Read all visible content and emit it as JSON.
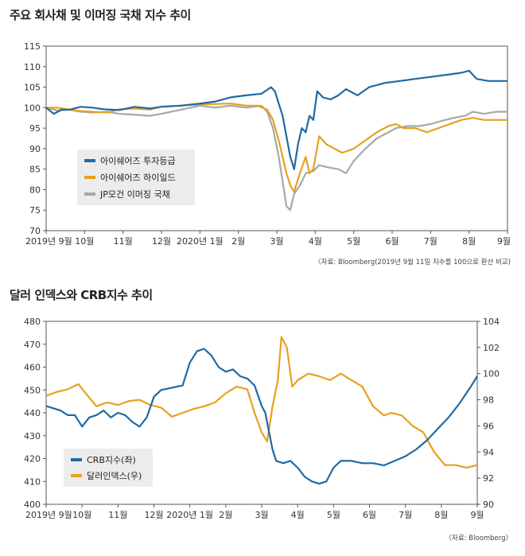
{
  "chart_data": [
    {
      "type": "line",
      "title": "주요 회사채 및 이머징 국채 지수 추이",
      "source": "〈자료: Bloomberg(2019년 9월 11일 지수를 100으로 환산 비교)",
      "ylim": [
        70,
        115
      ],
      "yticks": [
        "70",
        "75",
        "80",
        "85",
        "90",
        "95",
        "100",
        "105",
        "110",
        "115"
      ],
      "xlim": [
        0,
        12
      ],
      "xticks": [
        {
          "label": "2019년 9월",
          "x": 0
        },
        {
          "label": "10월",
          "x": 1
        },
        {
          "label": "11월",
          "x": 2
        },
        {
          "label": "12월",
          "x": 3
        },
        {
          "label": "2020년 1월",
          "x": 4
        },
        {
          "label": "2월",
          "x": 5
        },
        {
          "label": "3월",
          "x": 6
        },
        {
          "label": "4월",
          "x": 7
        },
        {
          "label": "5월",
          "x": 8
        },
        {
          "label": "6월",
          "x": 9
        },
        {
          "label": "7월",
          "x": 10
        },
        {
          "label": "8월",
          "x": 11
        },
        {
          "label": "9월",
          "x": 12
        }
      ],
      "legend_position": "center-left",
      "series": [
        {
          "name": "아이쉐어즈 투자등급",
          "color": "#1f6aa5",
          "points": [
            [
              0,
              100
            ],
            [
              0.2,
              98.5
            ],
            [
              0.4,
              99.5
            ],
            [
              0.6,
              99.5
            ],
            [
              0.9,
              100.2
            ],
            [
              1.2,
              100
            ],
            [
              1.5,
              99.6
            ],
            [
              1.9,
              99.4
            ],
            [
              2.3,
              100.2
            ],
            [
              2.7,
              99.8
            ],
            [
              3.0,
              100.2
            ],
            [
              3.5,
              100.5
            ],
            [
              4.0,
              101
            ],
            [
              4.4,
              101.5
            ],
            [
              4.8,
              102.5
            ],
            [
              5.2,
              103
            ],
            [
              5.6,
              103.4
            ],
            [
              5.85,
              105
            ],
            [
              5.95,
              104
            ],
            [
              6.05,
              101
            ],
            [
              6.15,
              98
            ],
            [
              6.25,
              93
            ],
            [
              6.35,
              88
            ],
            [
              6.45,
              85
            ],
            [
              6.55,
              91
            ],
            [
              6.65,
              95
            ],
            [
              6.75,
              94
            ],
            [
              6.85,
              98
            ],
            [
              6.95,
              97
            ],
            [
              7.05,
              104
            ],
            [
              7.2,
              102.5
            ],
            [
              7.4,
              102
            ],
            [
              7.6,
              103
            ],
            [
              7.8,
              104.5
            ],
            [
              8.1,
              103
            ],
            [
              8.4,
              105
            ],
            [
              8.8,
              106
            ],
            [
              9.2,
              106.5
            ],
            [
              9.6,
              107
            ],
            [
              10.0,
              107.5
            ],
            [
              10.4,
              108
            ],
            [
              10.8,
              108.5
            ],
            [
              11.0,
              109
            ],
            [
              11.2,
              107
            ],
            [
              11.5,
              106.5
            ],
            [
              11.8,
              106.5
            ],
            [
              12.0,
              106.5
            ]
          ]
        },
        {
          "name": "아이쉐어즈 하이일드",
          "color": "#e8a020",
          "points": [
            [
              0,
              100
            ],
            [
              0.3,
              100
            ],
            [
              0.6,
              99.5
            ],
            [
              0.9,
              99.2
            ],
            [
              1.2,
              99
            ],
            [
              1.6,
              98.8
            ],
            [
              1.9,
              99.6
            ],
            [
              2.3,
              99.8
            ],
            [
              2.7,
              99.5
            ],
            [
              3.0,
              100.3
            ],
            [
              3.5,
              100.5
            ],
            [
              4.0,
              100.8
            ],
            [
              4.4,
              100.9
            ],
            [
              4.8,
              101
            ],
            [
              5.2,
              100.5
            ],
            [
              5.5,
              100.5
            ],
            [
              5.75,
              99.5
            ],
            [
              5.9,
              97
            ],
            [
              6.05,
              92
            ],
            [
              6.15,
              88
            ],
            [
              6.25,
              84
            ],
            [
              6.35,
              81
            ],
            [
              6.45,
              79.5
            ],
            [
              6.6,
              84
            ],
            [
              6.75,
              88
            ],
            [
              6.85,
              84
            ],
            [
              6.95,
              85
            ],
            [
              7.1,
              93
            ],
            [
              7.3,
              91
            ],
            [
              7.5,
              90
            ],
            [
              7.7,
              89
            ],
            [
              8.0,
              90
            ],
            [
              8.3,
              92
            ],
            [
              8.6,
              94
            ],
            [
              8.9,
              95.5
            ],
            [
              9.1,
              96
            ],
            [
              9.3,
              95
            ],
            [
              9.6,
              95
            ],
            [
              9.9,
              94
            ],
            [
              10.2,
              95
            ],
            [
              10.5,
              96
            ],
            [
              10.8,
              97
            ],
            [
              11.1,
              97.5
            ],
            [
              11.4,
              97
            ],
            [
              11.7,
              97
            ],
            [
              12.0,
              97
            ]
          ]
        },
        {
          "name": "JP모건 이머징 국채",
          "color": "#a8a8a8",
          "points": [
            [
              0,
              100
            ],
            [
              0.3,
              99.3
            ],
            [
              0.6,
              99.5
            ],
            [
              0.9,
              99
            ],
            [
              1.2,
              98.8
            ],
            [
              1.6,
              99
            ],
            [
              1.9,
              98.5
            ],
            [
              2.3,
              98.3
            ],
            [
              2.7,
              98
            ],
            [
              3.0,
              98.5
            ],
            [
              3.5,
              99.5
            ],
            [
              4.0,
              100.5
            ],
            [
              4.4,
              100
            ],
            [
              4.8,
              100.5
            ],
            [
              5.2,
              100
            ],
            [
              5.6,
              100.5
            ],
            [
              5.75,
              99
            ],
            [
              5.9,
              95
            ],
            [
              6.05,
              88
            ],
            [
              6.15,
              82
            ],
            [
              6.25,
              76
            ],
            [
              6.35,
              75
            ],
            [
              6.45,
              79
            ],
            [
              6.6,
              81
            ],
            [
              6.75,
              84
            ],
            [
              6.95,
              84.5
            ],
            [
              7.1,
              86
            ],
            [
              7.3,
              85.5
            ],
            [
              7.6,
              85
            ],
            [
              7.8,
              84
            ],
            [
              8.0,
              87
            ],
            [
              8.3,
              90
            ],
            [
              8.6,
              92.5
            ],
            [
              8.9,
              94
            ],
            [
              9.1,
              95
            ],
            [
              9.4,
              95.5
            ],
            [
              9.7,
              95.5
            ],
            [
              10.0,
              96
            ],
            [
              10.3,
              96.8
            ],
            [
              10.6,
              97.5
            ],
            [
              10.9,
              98
            ],
            [
              11.1,
              99
            ],
            [
              11.4,
              98.5
            ],
            [
              11.7,
              99
            ],
            [
              12.0,
              99
            ]
          ]
        }
      ]
    },
    {
      "type": "line",
      "title": "달러 인덱스와 CRB지수 추이",
      "source": "〈자료: Bloomberg〉",
      "ylim_left": [
        400,
        480
      ],
      "yticks_left": [
        "400",
        "410",
        "420",
        "430",
        "440",
        "450",
        "460",
        "470",
        "480"
      ],
      "ylim_right": [
        90,
        104
      ],
      "yticks_right": [
        "90",
        "92",
        "94",
        "96",
        "98",
        "100",
        "102",
        "104"
      ],
      "xlim": [
        0,
        12
      ],
      "xticks": [
        {
          "label": "2019년 9월",
          "x": 0
        },
        {
          "label": "10월",
          "x": 1
        },
        {
          "label": "11월",
          "x": 2
        },
        {
          "label": "12월",
          "x": 3
        },
        {
          "label": "2020년 1월",
          "x": 4
        },
        {
          "label": "2월",
          "x": 5
        },
        {
          "label": "3월",
          "x": 6
        },
        {
          "label": "4월",
          "x": 7
        },
        {
          "label": "5월",
          "x": 8
        },
        {
          "label": "6월",
          "x": 9
        },
        {
          "label": "7월",
          "x": 10
        },
        {
          "label": "8월",
          "x": 11
        },
        {
          "label": "9월",
          "x": 12
        }
      ],
      "legend_position": "bottom-left",
      "series": [
        {
          "name": "CRB지수(좌)",
          "axis": "left",
          "color": "#1f6aa5",
          "points": [
            [
              0,
              443
            ],
            [
              0.2,
              442
            ],
            [
              0.4,
              441
            ],
            [
              0.6,
              439
            ],
            [
              0.8,
              439
            ],
            [
              1.0,
              434
            ],
            [
              1.2,
              438
            ],
            [
              1.4,
              439
            ],
            [
              1.6,
              441
            ],
            [
              1.8,
              438
            ],
            [
              2.0,
              440
            ],
            [
              2.2,
              439
            ],
            [
              2.4,
              436
            ],
            [
              2.6,
              434
            ],
            [
              2.8,
              438
            ],
            [
              3.0,
              447
            ],
            [
              3.2,
              450
            ],
            [
              3.5,
              451
            ],
            [
              3.8,
              452
            ],
            [
              4.0,
              462
            ],
            [
              4.2,
              467
            ],
            [
              4.4,
              468
            ],
            [
              4.6,
              465
            ],
            [
              4.8,
              460
            ],
            [
              5.0,
              458
            ],
            [
              5.2,
              459
            ],
            [
              5.4,
              456
            ],
            [
              5.6,
              455
            ],
            [
              5.8,
              452
            ],
            [
              6.0,
              443
            ],
            [
              6.1,
              440
            ],
            [
              6.2,
              432
            ],
            [
              6.3,
              424
            ],
            [
              6.4,
              419
            ],
            [
              6.6,
              418
            ],
            [
              6.8,
              419
            ],
            [
              7.0,
              416
            ],
            [
              7.2,
              412
            ],
            [
              7.4,
              410
            ],
            [
              7.6,
              409
            ],
            [
              7.8,
              410
            ],
            [
              8.0,
              416
            ],
            [
              8.2,
              419
            ],
            [
              8.5,
              419
            ],
            [
              8.8,
              418
            ],
            [
              9.1,
              418
            ],
            [
              9.4,
              417
            ],
            [
              9.7,
              419
            ],
            [
              10.0,
              421
            ],
            [
              10.3,
              424
            ],
            [
              10.6,
              428
            ],
            [
              10.9,
              433
            ],
            [
              11.2,
              438
            ],
            [
              11.5,
              444
            ],
            [
              11.8,
              451
            ],
            [
              12.0,
              456
            ]
          ]
        },
        {
          "name": "달러인덱스(우)",
          "axis": "right",
          "color": "#e8a020",
          "points": [
            [
              0,
              98.3
            ],
            [
              0.3,
              98.6
            ],
            [
              0.6,
              98.8
            ],
            [
              0.9,
              99.2
            ],
            [
              1.1,
              98.5
            ],
            [
              1.4,
              97.5
            ],
            [
              1.7,
              97.8
            ],
            [
              2.0,
              97.6
            ],
            [
              2.3,
              97.9
            ],
            [
              2.6,
              98.0
            ],
            [
              2.9,
              97.6
            ],
            [
              3.2,
              97.4
            ],
            [
              3.5,
              96.7
            ],
            [
              3.8,
              97.0
            ],
            [
              4.1,
              97.3
            ],
            [
              4.4,
              97.5
            ],
            [
              4.7,
              97.8
            ],
            [
              5.0,
              98.5
            ],
            [
              5.3,
              99.0
            ],
            [
              5.6,
              98.8
            ],
            [
              5.8,
              97.0
            ],
            [
              6.0,
              95.5
            ],
            [
              6.15,
              94.8
            ],
            [
              6.3,
              97.5
            ],
            [
              6.45,
              99.5
            ],
            [
              6.55,
              102.8
            ],
            [
              6.7,
              102.0
            ],
            [
              6.85,
              99.0
            ],
            [
              7.0,
              99.5
            ],
            [
              7.3,
              100.0
            ],
            [
              7.6,
              99.8
            ],
            [
              7.9,
              99.5
            ],
            [
              8.2,
              100.0
            ],
            [
              8.5,
              99.5
            ],
            [
              8.8,
              99.0
            ],
            [
              9.1,
              97.5
            ],
            [
              9.4,
              96.8
            ],
            [
              9.6,
              97.0
            ],
            [
              9.9,
              96.8
            ],
            [
              10.2,
              96.0
            ],
            [
              10.5,
              95.5
            ],
            [
              10.8,
              94.0
            ],
            [
              11.1,
              93.0
            ],
            [
              11.4,
              93.0
            ],
            [
              11.7,
              92.8
            ],
            [
              12.0,
              93.0
            ]
          ]
        }
      ]
    }
  ]
}
